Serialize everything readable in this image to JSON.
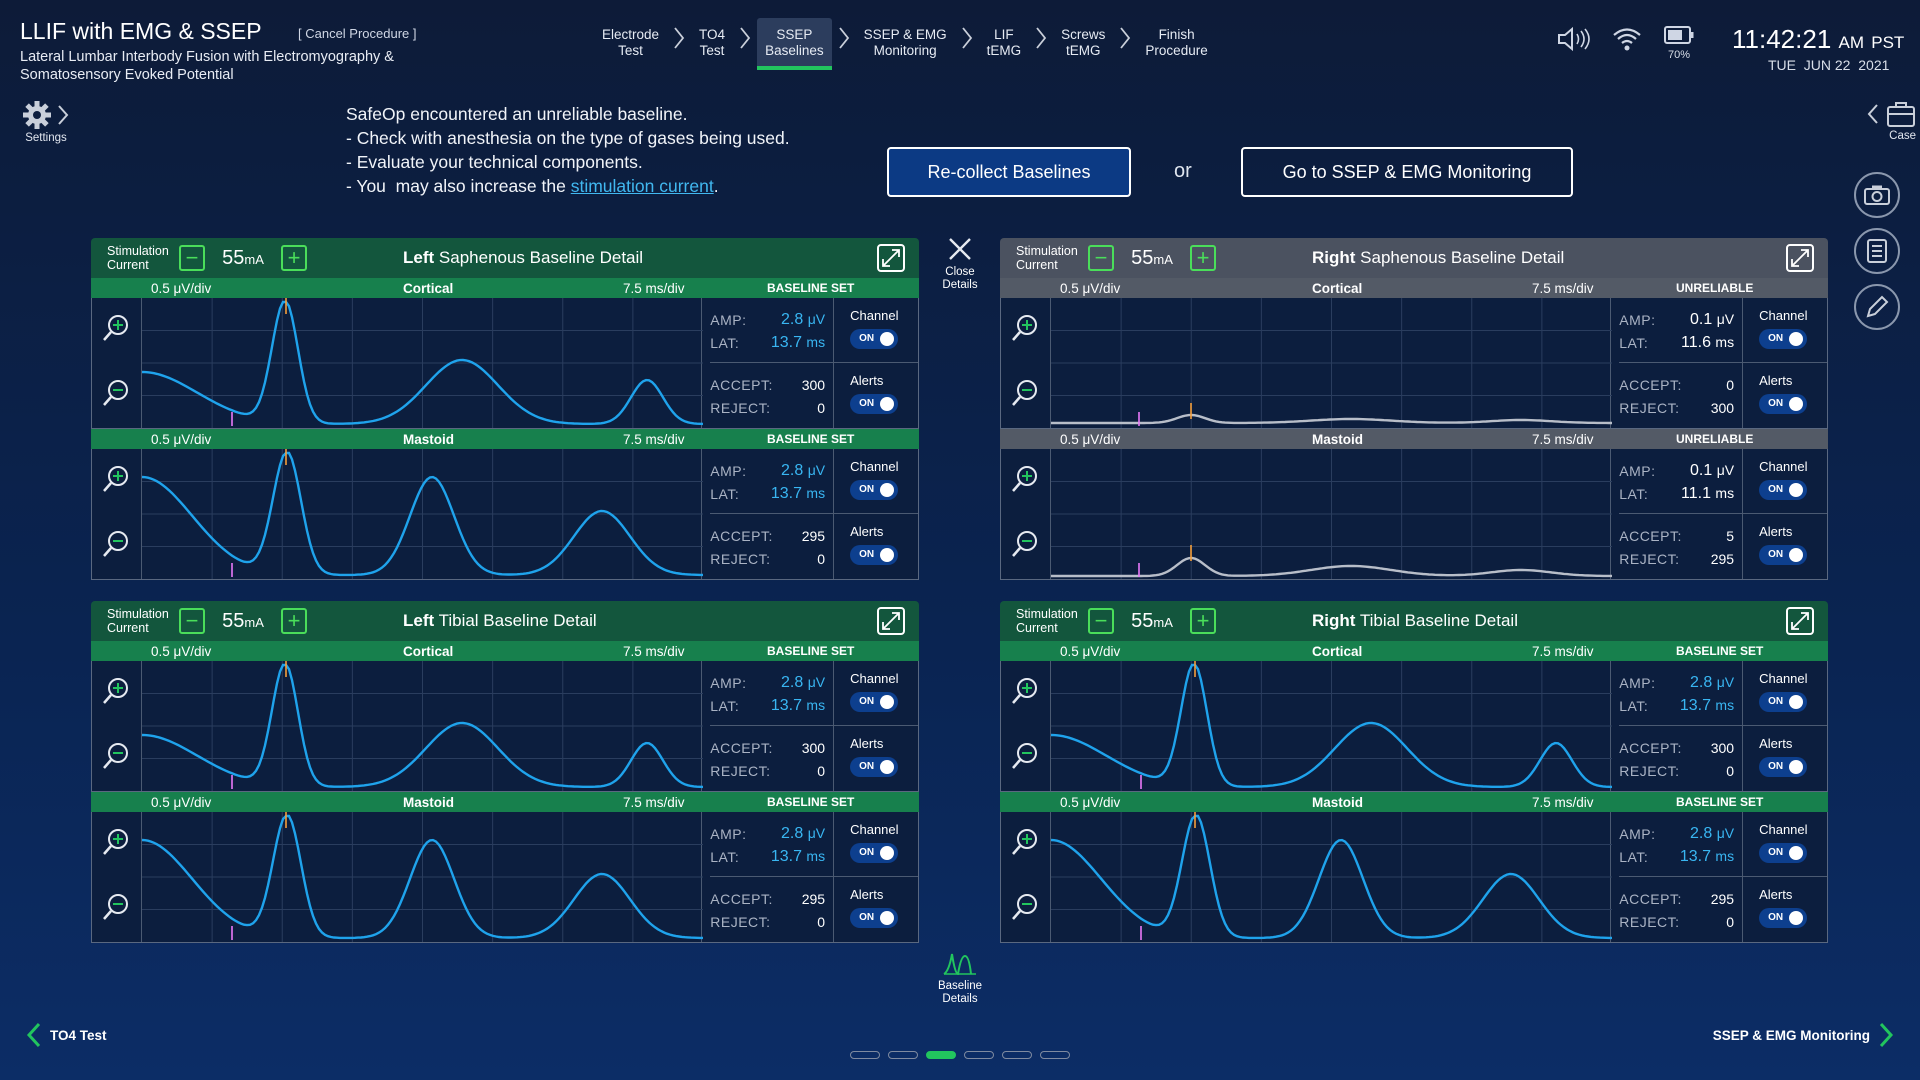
{
  "header": {
    "title": "LLIF with EMG & SSEP",
    "cancel": "[ Cancel Procedure ]",
    "subtitle": "Lateral Lumbar Interbody Fusion with Electromyography & Somatosensory Evoked Potential",
    "steps": [
      {
        "line1": "Electrode",
        "line2": "Test"
      },
      {
        "line1": "TO4",
        "line2": "Test"
      },
      {
        "line1": "SSEP",
        "line2": "Baselines"
      },
      {
        "line1": "SSEP & EMG",
        "line2": "Monitoring"
      },
      {
        "line1": "LIF",
        "line2": "tEMG"
      },
      {
        "line1": "Screws",
        "line2": "tEMG"
      },
      {
        "line1": "Finish",
        "line2": "Procedure"
      }
    ],
    "active_step": 2,
    "battery": "70%",
    "time": "11:42:21",
    "ampm": "AM",
    "tz": "PST",
    "date_day": "TUE",
    "date_md": "JUN 22",
    "date_year": "2021"
  },
  "tools": {
    "settings": "Settings",
    "case": "Case"
  },
  "alert": {
    "line1": "SafeOp encountered an unreliable baseline.",
    "line2": "- Check with anesthesia on the type of gases being used.",
    "line3": "- Evaluate your technical components.",
    "line4_pre": "- You  may also increase the ",
    "line4_link": "stimulation current",
    "line4_post": "."
  },
  "buttons": {
    "recollect": "Re-collect Baselines",
    "or": "or",
    "goto": "Go to SSEP & EMG Monitoring",
    "close_details_1": "Close",
    "close_details_2": "Details",
    "baseline_details_1": "Baseline",
    "baseline_details_2": "Details"
  },
  "labels": {
    "stim_1": "Stimulation",
    "stim_2": "Current",
    "stim_val": "55",
    "stim_unit": "mA",
    "uv": "0.5 μV/div",
    "ms": "7.5 ms/div",
    "amp": "AMP:",
    "lat": "LAT:",
    "accept": "ACCEPT:",
    "reject": "REJECT:",
    "channel": "Channel",
    "alerts": "Alerts",
    "on": "ON"
  },
  "panels": [
    {
      "side": "Left",
      "nerve": "Saphenous Baseline Detail",
      "rows": [
        {
          "name": "Cortical",
          "status": "BASELINE SET",
          "amp": "2.8",
          "amp_unit": "μV",
          "lat": "13.7",
          "lat_unit": "ms",
          "accept": "300",
          "reject": "0"
        },
        {
          "name": "Mastoid",
          "status": "BASELINE SET",
          "amp": "2.8",
          "amp_unit": "μV",
          "lat": "13.7",
          "lat_unit": "ms",
          "accept": "295",
          "reject": "0"
        }
      ]
    },
    {
      "side": "Right",
      "nerve": "Saphenous Baseline Detail",
      "rows": [
        {
          "name": "Cortical",
          "status": "UNRELIABLE",
          "amp": "0.1",
          "amp_unit": "μV",
          "lat": "11.6",
          "lat_unit": "ms",
          "accept": "0",
          "reject": "300"
        },
        {
          "name": "Mastoid",
          "status": "UNRELIABLE",
          "amp": "0.1",
          "amp_unit": "μV",
          "lat": "11.1",
          "lat_unit": "ms",
          "accept": "5",
          "reject": "295"
        }
      ]
    },
    {
      "side": "Left",
      "nerve": "Tibial Baseline Detail",
      "rows": [
        {
          "name": "Cortical",
          "status": "BASELINE SET",
          "amp": "2.8",
          "amp_unit": "μV",
          "lat": "13.7",
          "lat_unit": "ms",
          "accept": "300",
          "reject": "0"
        },
        {
          "name": "Mastoid",
          "status": "BASELINE SET",
          "amp": "2.8",
          "amp_unit": "μV",
          "lat": "13.7",
          "lat_unit": "ms",
          "accept": "295",
          "reject": "0"
        }
      ]
    },
    {
      "side": "Right",
      "nerve": "Tibial Baseline Detail",
      "rows": [
        {
          "name": "Cortical",
          "status": "BASELINE SET",
          "amp": "2.8",
          "amp_unit": "μV",
          "lat": "13.7",
          "lat_unit": "ms",
          "accept": "300",
          "reject": "0"
        },
        {
          "name": "Mastoid",
          "status": "BASELINE SET",
          "amp": "2.8",
          "amp_unit": "μV",
          "lat": "13.7",
          "lat_unit": "ms",
          "accept": "295",
          "reject": "0"
        }
      ]
    }
  ],
  "footer": {
    "prev": "TO4 Test",
    "next": "SSEP & EMG Monitoring",
    "page_count": 6,
    "active_page": 2
  },
  "colors": {
    "accent_green": "#22c55e",
    "trace_blue": "#1fa3ec",
    "trace_gray": "#b8bec9",
    "status_green": "#17804d",
    "status_gray": "#535a66"
  }
}
